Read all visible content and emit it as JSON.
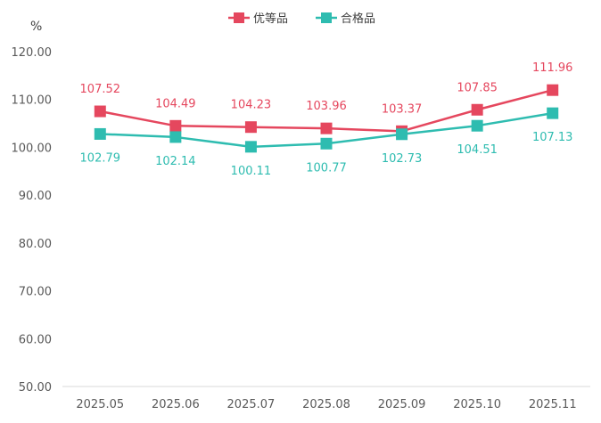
{
  "chart_data": {
    "type": "line",
    "ylabel": "%",
    "categories": [
      "2025.05",
      "2025.06",
      "2025.07",
      "2025.08",
      "2025.09",
      "2025.10",
      "2025.11"
    ],
    "yticks": [
      "50.00",
      "60.00",
      "70.00",
      "80.00",
      "90.00",
      "100.00",
      "110.00",
      "120.00"
    ],
    "ylim": [
      50,
      120
    ],
    "grid": false,
    "legend_position": "top-center",
    "series": [
      {
        "name": "优等品",
        "color": "#E5475E",
        "values": [
          107.52,
          104.49,
          104.23,
          103.96,
          103.37,
          107.85,
          111.96
        ],
        "labels": [
          "107.52",
          "104.49",
          "104.23",
          "103.96",
          "103.37",
          "107.85",
          "111.96"
        ]
      },
      {
        "name": "合格品",
        "color": "#2EBCB0",
        "values": [
          102.79,
          102.14,
          100.11,
          100.77,
          102.73,
          104.51,
          107.13
        ],
        "labels": [
          "102.79",
          "102.14",
          "100.11",
          "100.77",
          "102.73",
          "104.51",
          "107.13"
        ]
      }
    ]
  }
}
